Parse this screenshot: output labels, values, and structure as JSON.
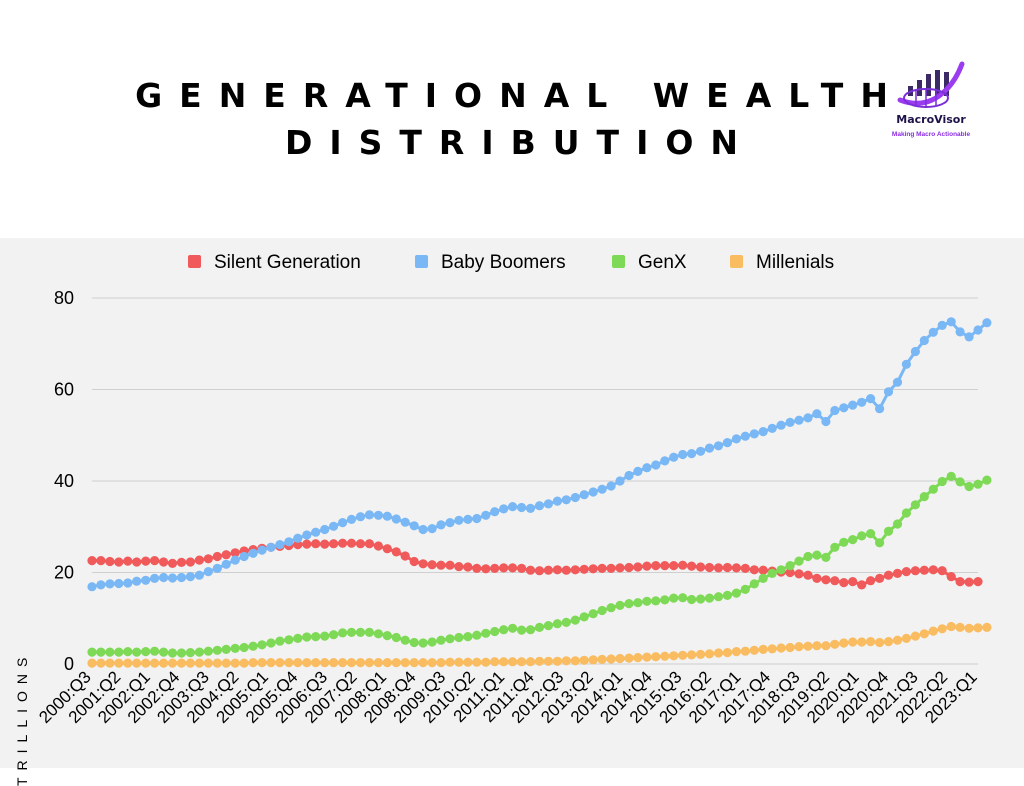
{
  "header": {
    "title": "GENERATIONAL WEALTH DISTRIBUTION",
    "logo_name": "MacroVisor",
    "logo_tagline": "Making Macro Actionable"
  },
  "chart_data": {
    "type": "line",
    "title": "GENERATIONAL WEALTH DISTRIBUTION",
    "xlabel": "",
    "ylabel": "TRILLIONS",
    "ylim": [
      0,
      80
    ],
    "yticks": [
      0,
      20,
      40,
      60,
      80
    ],
    "grid": true,
    "legend": "top",
    "x_start": "2000:Q3",
    "x_end": "2023:Q1",
    "x_tick_labels": [
      "2000:Q3",
      "2001:Q2",
      "2002:Q1",
      "2002:Q4",
      "2003:Q3",
      "2004:Q2",
      "2005:Q1",
      "2005:Q4",
      "2006:Q3",
      "2007:Q2",
      "2008:Q1",
      "2008:Q4",
      "2009:Q3",
      "2010:Q2",
      "2011:Q1",
      "2011:Q4",
      "2012:Q3",
      "2013:Q2",
      "2014:Q1",
      "2014:Q4",
      "2015:Q3",
      "2016:Q2",
      "2017:Q1",
      "2017:Q4",
      "2018:Q3",
      "2019:Q2",
      "2020:Q1",
      "2020:Q4",
      "2021:Q3",
      "2022:Q2",
      "2023:Q1"
    ],
    "series": [
      {
        "name": "Silent Generation",
        "color": "#f05a5a",
        "values": [
          22.6,
          22.6,
          22.4,
          22.3,
          22.5,
          22.3,
          22.5,
          22.6,
          22.3,
          22.0,
          22.2,
          22.3,
          22.7,
          23.0,
          23.5,
          23.9,
          24.3,
          24.7,
          25.0,
          25.3,
          25.5,
          25.7,
          25.9,
          26.1,
          26.2,
          26.3,
          26.2,
          26.3,
          26.4,
          26.4,
          26.3,
          26.3,
          25.8,
          25.2,
          24.5,
          23.6,
          22.4,
          21.9,
          21.7,
          21.6,
          21.6,
          21.3,
          21.2,
          20.9,
          20.8,
          20.9,
          21.0,
          21.0,
          20.9,
          20.5,
          20.4,
          20.5,
          20.6,
          20.5,
          20.6,
          20.7,
          20.8,
          20.9,
          20.9,
          21.0,
          21.1,
          21.2,
          21.4,
          21.5,
          21.5,
          21.5,
          21.6,
          21.4,
          21.2,
          21.1,
          21.0,
          21.1,
          21.0,
          20.9,
          20.6,
          20.5,
          20.3,
          20.1,
          20.0,
          19.7,
          19.4,
          18.7,
          18.4,
          18.2,
          17.8,
          18.0,
          17.3,
          18.2,
          18.7,
          19.4,
          19.8,
          20.2,
          20.4,
          20.5,
          20.6,
          20.4,
          19.1,
          18.0,
          17.9,
          18.0
        ]
      },
      {
        "name": "Baby Boomers",
        "color": "#7ab8f5",
        "values": [
          16.9,
          17.3,
          17.5,
          17.6,
          17.7,
          18.1,
          18.3,
          18.7,
          18.9,
          18.8,
          18.9,
          19.1,
          19.4,
          20.2,
          20.9,
          21.8,
          22.7,
          23.5,
          24.2,
          24.9,
          25.5,
          26.1,
          26.7,
          27.5,
          28.2,
          28.8,
          29.4,
          30.1,
          30.9,
          31.6,
          32.2,
          32.6,
          32.5,
          32.3,
          31.7,
          31.0,
          30.2,
          29.4,
          29.6,
          30.4,
          30.9,
          31.4,
          31.6,
          31.8,
          32.5,
          33.3,
          33.9,
          34.4,
          34.2,
          34.0,
          34.6,
          35.0,
          35.6,
          35.9,
          36.4,
          37.0,
          37.6,
          38.2,
          38.9,
          40.0,
          41.2,
          42.1,
          42.9,
          43.5,
          44.4,
          45.2,
          45.8,
          46.0,
          46.5,
          47.2,
          47.7,
          48.4,
          49.2,
          49.8,
          50.3,
          50.8,
          51.5,
          52.2,
          52.8,
          53.3,
          53.8,
          54.7,
          53.0,
          55.4,
          56.0,
          56.6,
          57.2,
          58.0,
          55.8,
          59.5,
          61.6,
          65.5,
          68.3,
          70.7,
          72.5,
          74.0,
          74.8,
          72.6,
          71.5,
          73.0,
          74.6
        ]
      },
      {
        "name": "GenX",
        "color": "#7ed957",
        "values": [
          2.6,
          2.6,
          2.6,
          2.6,
          2.7,
          2.6,
          2.7,
          2.8,
          2.6,
          2.4,
          2.4,
          2.5,
          2.6,
          2.8,
          3.0,
          3.2,
          3.4,
          3.6,
          3.9,
          4.2,
          4.6,
          5.0,
          5.3,
          5.6,
          5.9,
          6.0,
          6.1,
          6.4,
          6.8,
          6.9,
          6.9,
          6.9,
          6.6,
          6.2,
          5.8,
          5.2,
          4.7,
          4.6,
          4.8,
          5.2,
          5.5,
          5.8,
          6.0,
          6.3,
          6.7,
          7.1,
          7.5,
          7.8,
          7.4,
          7.5,
          8.0,
          8.4,
          8.8,
          9.1,
          9.6,
          10.3,
          11.0,
          11.7,
          12.3,
          12.8,
          13.2,
          13.4,
          13.7,
          13.8,
          14.0,
          14.4,
          14.5,
          14.1,
          14.2,
          14.4,
          14.7,
          15.0,
          15.5,
          16.3,
          17.5,
          18.7,
          19.8,
          20.6,
          21.5,
          22.5,
          23.5,
          23.8,
          23.3,
          25.5,
          26.6,
          27.2,
          28.0,
          28.5,
          26.5,
          29.0,
          30.6,
          33.0,
          34.8,
          36.6,
          38.2,
          39.9,
          41.0,
          39.8,
          38.8,
          39.3,
          40.2
        ]
      },
      {
        "name": "Millenials",
        "color": "#f9bc60",
        "values": [
          0.2,
          0.2,
          0.2,
          0.2,
          0.2,
          0.2,
          0.2,
          0.2,
          0.2,
          0.2,
          0.2,
          0.2,
          0.2,
          0.2,
          0.2,
          0.2,
          0.2,
          0.2,
          0.3,
          0.3,
          0.3,
          0.3,
          0.3,
          0.3,
          0.3,
          0.3,
          0.3,
          0.3,
          0.3,
          0.3,
          0.3,
          0.3,
          0.3,
          0.3,
          0.3,
          0.3,
          0.3,
          0.3,
          0.3,
          0.3,
          0.4,
          0.4,
          0.4,
          0.4,
          0.4,
          0.5,
          0.5,
          0.5,
          0.5,
          0.5,
          0.6,
          0.6,
          0.6,
          0.7,
          0.7,
          0.8,
          0.9,
          1.0,
          1.1,
          1.2,
          1.3,
          1.4,
          1.5,
          1.6,
          1.7,
          1.8,
          1.9,
          2.0,
          2.1,
          2.2,
          2.4,
          2.5,
          2.7,
          2.8,
          3.0,
          3.2,
          3.3,
          3.5,
          3.6,
          3.8,
          3.9,
          4.0,
          4.0,
          4.3,
          4.6,
          4.8,
          4.8,
          4.9,
          4.7,
          4.9,
          5.2,
          5.6,
          6.1,
          6.6,
          7.2,
          7.7,
          8.2,
          8.0,
          7.8,
          7.9,
          8.0
        ]
      }
    ]
  }
}
